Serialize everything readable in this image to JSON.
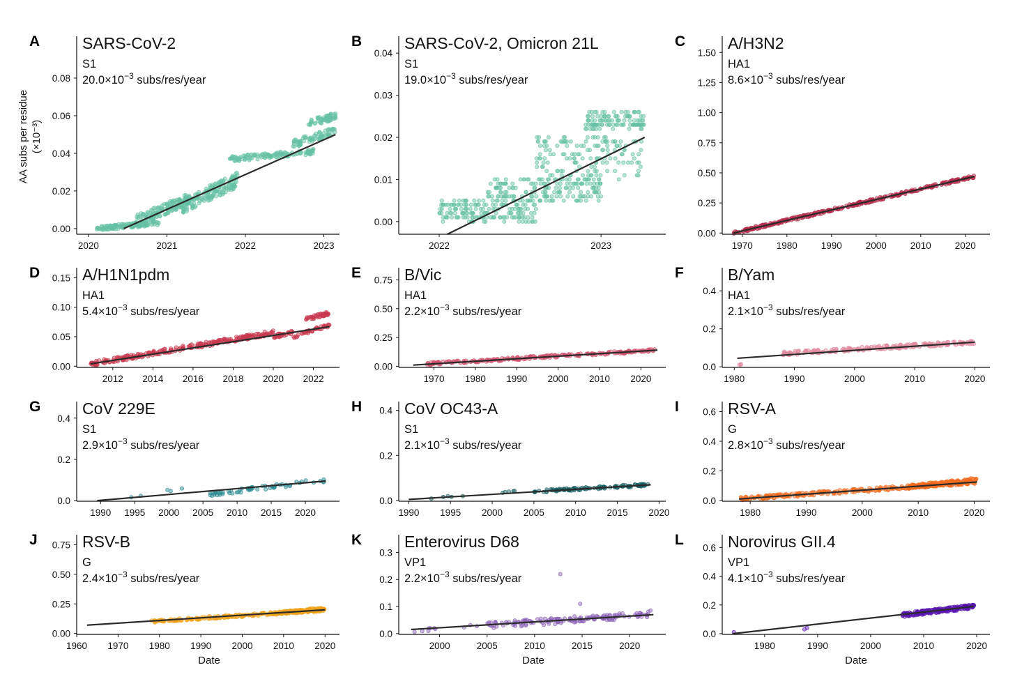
{
  "figure": {
    "ylabel_line1": "AA subs per residue",
    "ylabel_line2": "(×10⁻³)",
    "xlabel": "Date"
  },
  "chart_data": [
    {
      "id": "A",
      "type": "scatter",
      "title": "SARS-CoV-2",
      "gene": "S1",
      "rate": "20.0×10",
      "rate_exp": "−3",
      "rate_unit": " subs/res/year",
      "color": "#66c2a5",
      "xlim": [
        2019.85,
        2023.2
      ],
      "ylim": [
        -0.003,
        0.1
      ],
      "xticks": [
        2020,
        2021,
        2022,
        2023
      ],
      "xtick_labels": [
        "2020",
        "2021",
        "2022",
        "2023"
      ],
      "yticks": [
        0,
        0.02,
        0.04,
        0.06,
        0.08
      ],
      "ytick_labels": [
        "0.00",
        "0.02",
        "0.04",
        "0.06",
        "0.08"
      ],
      "fit": {
        "x0": 2020.45,
        "y0": 0.0,
        "x1": 2023.15,
        "y1": 0.05
      },
      "clusters": [
        {
          "x": [
            2020.1,
            2020.9
          ],
          "y": [
            0.0,
            0.003
          ],
          "n": 140,
          "jit": 0.0012
        },
        {
          "x": [
            2020.6,
            2021.3
          ],
          "y": [
            0.004,
            0.016
          ],
          "n": 150,
          "jit": 0.003
        },
        {
          "x": [
            2021.2,
            2021.9
          ],
          "y": [
            0.012,
            0.026
          ],
          "n": 170,
          "jit": 0.004
        },
        {
          "x": [
            2021.8,
            2022.9
          ],
          "y": [
            0.037,
            0.041
          ],
          "n": 130,
          "jit": 0.0015
        },
        {
          "x": [
            2022.6,
            2023.15
          ],
          "y": [
            0.045,
            0.052
          ],
          "n": 80,
          "jit": 0.002
        },
        {
          "x": [
            2022.8,
            2023.15
          ],
          "y": [
            0.056,
            0.06
          ],
          "n": 60,
          "jit": 0.002
        }
      ]
    },
    {
      "id": "B",
      "type": "scatter",
      "title": "SARS-CoV-2, Omicron 21L",
      "gene": "S1",
      "rate": "19.0×10",
      "rate_exp": "−3",
      "rate_unit": " subs/res/year",
      "color": "#66c2a5",
      "xlim": [
        2021.75,
        2023.4
      ],
      "ylim": [
        -0.003,
        0.043
      ],
      "xticks": [
        2022,
        2023
      ],
      "xtick_labels": [
        "2022",
        "2023"
      ],
      "yticks": [
        0,
        0.01,
        0.02,
        0.03,
        0.04
      ],
      "ytick_labels": [
        "0.00",
        "0.01",
        "0.02",
        "0.03",
        "0.04"
      ],
      "fit": {
        "x0": 2022.05,
        "y0": -0.003,
        "x1": 2023.27,
        "y1": 0.02
      },
      "clusters": [
        {
          "x": [
            2022.0,
            2022.6
          ],
          "y": [
            0.0,
            0.005
          ],
          "n": 170,
          "jit": 0.0,
          "band": 0.001
        },
        {
          "x": [
            2022.3,
            2023.0
          ],
          "y": [
            0.005,
            0.01
          ],
          "n": 170,
          "jit": 0.0,
          "band": 0.001
        },
        {
          "x": [
            2022.6,
            2023.25
          ],
          "y": [
            0.01,
            0.02
          ],
          "n": 150,
          "jit": 0.0,
          "band": 0.001
        },
        {
          "x": [
            2022.9,
            2023.27
          ],
          "y": [
            0.022,
            0.026
          ],
          "n": 110,
          "jit": 0.0,
          "band": 0.001
        }
      ]
    },
    {
      "id": "C",
      "type": "scatter",
      "title": "A/H3N2",
      "gene": "HA1",
      "rate": "8.6×10",
      "rate_exp": "−3",
      "rate_unit": " subs/res/year",
      "color": "#b5294a",
      "xlim": [
        1965.5,
        2025.5
      ],
      "ylim": [
        -0.01,
        1.6
      ],
      "xticks": [
        1970,
        1980,
        1990,
        2000,
        2010,
        2020
      ],
      "xtick_labels": [
        "1970",
        "1980",
        "1990",
        "2000",
        "2010",
        "2020"
      ],
      "yticks": [
        0,
        0.25,
        0.5,
        0.75,
        1.0,
        1.25,
        1.5
      ],
      "ytick_labels": [
        "0.00",
        "0.25",
        "0.50",
        "0.75",
        "1.00",
        "1.25",
        "1.50"
      ],
      "fit": {
        "x0": 1968,
        "y0": 0.0,
        "x1": 2022,
        "y1": 0.47
      },
      "clusters": [
        {
          "x": [
            1968,
            2022
          ],
          "y": [
            0.0,
            0.47
          ],
          "n": 320,
          "jit": 0.012
        }
      ]
    },
    {
      "id": "D",
      "type": "scatter",
      "title": "A/H1N1pdm",
      "gene": "HA1",
      "rate": "5.4×10",
      "rate_exp": "−3",
      "rate_unit": " subs/res/year",
      "color": "#c8384f",
      "xlim": [
        2010.2,
        2023.3
      ],
      "ylim": [
        -0.002,
        0.16
      ],
      "xticks": [
        2012,
        2014,
        2016,
        2018,
        2020,
        2022
      ],
      "xtick_labels": [
        "2012",
        "2014",
        "2016",
        "2018",
        "2020",
        "2022"
      ],
      "yticks": [
        0,
        0.05,
        0.1,
        0.15
      ],
      "ytick_labels": [
        "0.00",
        "0.05",
        "0.10",
        "0.15"
      ],
      "fit": {
        "x0": 2010.9,
        "y0": 0.004,
        "x1": 2022.8,
        "y1": 0.067
      },
      "clusters": [
        {
          "x": [
            2010.9,
            2020.0
          ],
          "y": [
            0.004,
            0.057
          ],
          "n": 260,
          "jit": 0.004
        },
        {
          "x": [
            2020.0,
            2021.0
          ],
          "y": [
            0.05,
            0.058
          ],
          "n": 30,
          "jit": 0.003
        },
        {
          "x": [
            2021.0,
            2022.8
          ],
          "y": [
            0.05,
            0.07
          ],
          "n": 40,
          "jit": 0.003
        },
        {
          "x": [
            2021.6,
            2022.8
          ],
          "y": [
            0.08,
            0.09
          ],
          "n": 40,
          "jit": 0.003
        }
      ]
    },
    {
      "id": "E",
      "type": "scatter",
      "title": "B/Vic",
      "gene": "HA1",
      "rate": "2.2×10",
      "rate_exp": "−3",
      "rate_unit": " subs/res/year",
      "color": "#d1506d",
      "xlim": [
        1961.5,
        2026
      ],
      "ylim": [
        -0.01,
        0.82
      ],
      "xticks": [
        1970,
        1980,
        1990,
        2000,
        2010,
        2020
      ],
      "xtick_labels": [
        "1970",
        "1980",
        "1990",
        "2000",
        "2010",
        "2020"
      ],
      "yticks": [
        0,
        0.25,
        0.5,
        0.75
      ],
      "ytick_labels": [
        "0.00",
        "0.25",
        "0.50",
        "0.75"
      ],
      "fit": {
        "x0": 1965,
        "y0": 0.01,
        "x1": 2024,
        "y1": 0.14
      },
      "clusters": [
        {
          "x": [
            1968,
            2024
          ],
          "y": [
            0.02,
            0.14
          ],
          "n": 220,
          "jit": 0.012
        }
      ]
    },
    {
      "id": "F",
      "type": "scatter",
      "title": "B/Yam",
      "gene": "HA1",
      "rate": "2.1×10",
      "rate_exp": "−3",
      "rate_unit": " subs/res/year",
      "color": "#e0889e",
      "xlim": [
        1978,
        2022.5
      ],
      "ylim": [
        -0.003,
        0.5
      ],
      "xticks": [
        1980,
        1990,
        2000,
        2010,
        2020
      ],
      "xtick_labels": [
        "1980",
        "1990",
        "2000",
        "2010",
        "2020"
      ],
      "yticks": [
        0,
        0.2,
        0.4
      ],
      "ytick_labels": [
        "0.0",
        "0.2",
        "0.4"
      ],
      "fit": {
        "x0": 1980.5,
        "y0": 0.045,
        "x1": 2020,
        "y1": 0.13
      },
      "clusters": [
        {
          "x": [
            1988,
            2020
          ],
          "y": [
            0.07,
            0.13
          ],
          "n": 200,
          "jit": 0.01
        },
        {
          "x": [
            1980.8,
            1981.5
          ],
          "y": [
            0.01,
            0.02
          ],
          "n": 3,
          "jit": 0.003
        }
      ]
    },
    {
      "id": "G",
      "type": "scatter",
      "title": "CoV 229E",
      "gene": "S1",
      "rate": "2.9×10",
      "rate_exp": "−3",
      "rate_unit": " subs/res/year",
      "color": "#2a8a91",
      "xlim": [
        1986.5,
        2025
      ],
      "ylim": [
        -0.003,
        0.46
      ],
      "xticks": [
        1990,
        1995,
        2000,
        2005,
        2010,
        2015,
        2020
      ],
      "xtick_labels": [
        "1990",
        "1995",
        "2000",
        "2005",
        "2010",
        "2015",
        "2020"
      ],
      "yticks": [
        0,
        0.2,
        0.4
      ],
      "ytick_labels": [
        "0.0",
        "0.2",
        "0.4"
      ],
      "fit": {
        "x0": 1989.5,
        "y0": 0.0,
        "x1": 2023,
        "y1": 0.095
      },
      "clusters": [
        {
          "x": [
            2006,
            2023
          ],
          "y": [
            0.03,
            0.1
          ],
          "n": 60,
          "jit": 0.01
        },
        {
          "x": [
            1993,
            2002
          ],
          "y": [
            0.01,
            0.06
          ],
          "n": 5,
          "jit": 0.008
        }
      ]
    },
    {
      "id": "H",
      "type": "scatter",
      "title": "CoV OC43-A",
      "gene": "S1",
      "rate": "2.1×10",
      "rate_exp": "−3",
      "rate_unit": " subs/res/year",
      "color": "#165e60",
      "xlim": [
        1988.8,
        2020.8
      ],
      "ylim": [
        -0.003,
        0.42
      ],
      "xticks": [
        1990,
        1995,
        2000,
        2005,
        2010,
        2015,
        2020
      ],
      "xtick_labels": [
        "1990",
        "1995",
        "2000",
        "2005",
        "2010",
        "2015",
        "2020"
      ],
      "yticks": [
        0,
        0.2,
        0.4
      ],
      "ytick_labels": [
        "0.0",
        "0.2",
        "0.4"
      ],
      "fit": {
        "x0": 1990,
        "y0": 0.005,
        "x1": 2019,
        "y1": 0.07
      },
      "clusters": [
        {
          "x": [
            2005,
            2019
          ],
          "y": [
            0.04,
            0.07
          ],
          "n": 110,
          "jit": 0.006
        },
        {
          "x": [
            1990,
            2003
          ],
          "y": [
            0.005,
            0.04
          ],
          "n": 10,
          "jit": 0.004
        }
      ]
    },
    {
      "id": "I",
      "type": "scatter",
      "title": "RSV-A",
      "gene": "G",
      "rate": "2.8×10",
      "rate_exp": "−3",
      "rate_unit": " subs/res/year",
      "color": "#f26b20",
      "xlim": [
        1975,
        2022.8
      ],
      "ylim": [
        -0.005,
        0.64
      ],
      "xticks": [
        1980,
        1990,
        2000,
        2010,
        2020
      ],
      "xtick_labels": [
        "1980",
        "1990",
        "2000",
        "2010",
        "2020"
      ],
      "yticks": [
        0,
        0.2,
        0.4,
        0.6
      ],
      "ytick_labels": [
        "0.0",
        "0.2",
        "0.4",
        "0.6"
      ],
      "fit": {
        "x0": 1978,
        "y0": 0.01,
        "x1": 2020.5,
        "y1": 0.125
      },
      "clusters": [
        {
          "x": [
            1978,
            2020.5
          ],
          "y": [
            0.01,
            0.125
          ],
          "n": 260,
          "jit": 0.012
        },
        {
          "x": [
            2008,
            2020.5
          ],
          "y": [
            0.09,
            0.14
          ],
          "n": 150,
          "jit": 0.014
        }
      ]
    },
    {
      "id": "J",
      "type": "scatter",
      "title": "RSV-B",
      "gene": "G",
      "rate": "2.4×10",
      "rate_exp": "−3",
      "rate_unit": " subs/res/year",
      "color": "#f0a21a",
      "xlim": [
        1960,
        2023.5
      ],
      "ylim": [
        -0.008,
        0.8
      ],
      "xticks": [
        1960,
        1970,
        1980,
        1990,
        2000,
        2010,
        2020
      ],
      "xtick_labels": [
        "1960",
        "1970",
        "1980",
        "1990",
        "2000",
        "2010",
        "2020"
      ],
      "yticks": [
        0,
        0.25,
        0.5,
        0.75
      ],
      "ytick_labels": [
        "0.00",
        "0.25",
        "0.50",
        "0.75"
      ],
      "fit": {
        "x0": 1962.5,
        "y0": 0.07,
        "x1": 2020,
        "y1": 0.2
      },
      "clusters": [
        {
          "x": [
            1978,
            2020
          ],
          "y": [
            0.1,
            0.2
          ],
          "n": 200,
          "jit": 0.012
        },
        {
          "x": [
            2008,
            2020
          ],
          "y": [
            0.17,
            0.21
          ],
          "n": 120,
          "jit": 0.012
        }
      ]
    },
    {
      "id": "K",
      "type": "scatter",
      "title": "Enterovirus D68",
      "gene": "VP1",
      "rate": "2.2×10",
      "rate_exp": "−3",
      "rate_unit": " subs/res/year",
      "color": "#8a62b5",
      "xlim": [
        1995.7,
        2023.8
      ],
      "ylim": [
        -0.003,
        0.35
      ],
      "xticks": [
        2000,
        2005,
        2010,
        2015,
        2020
      ],
      "xtick_labels": [
        "2000",
        "2005",
        "2010",
        "2015",
        "2020"
      ],
      "yticks": [
        0,
        0.1,
        0.2,
        0.3
      ],
      "ytick_labels": [
        "0.0",
        "0.1",
        "0.2",
        "0.3"
      ],
      "fit": {
        "x0": 1997,
        "y0": 0.015,
        "x1": 2022.5,
        "y1": 0.07
      },
      "clusters": [
        {
          "x": [
            2005,
            2022
          ],
          "y": [
            0.03,
            0.07
          ],
          "n": 150,
          "jit": 0.012
        },
        {
          "x": [
            1997,
            2004
          ],
          "y": [
            0.01,
            0.03
          ],
          "n": 10,
          "jit": 0.006
        }
      ],
      "outliers": [
        [
          2012.7,
          0.22
        ],
        [
          2014.8,
          0.11
        ],
        [
          2022.2,
          0.085
        ]
      ]
    },
    {
      "id": "L",
      "type": "scatter",
      "title": "Norovirus GII.4",
      "gene": "VP1",
      "rate": "4.1×10",
      "rate_exp": "−3",
      "rate_unit": " subs/res/year",
      "color": "#5a18b0",
      "xlim": [
        1972,
        2022.5
      ],
      "ylim": [
        -0.005,
        0.66
      ],
      "xticks": [
        1980,
        1990,
        2000,
        2010,
        2020
      ],
      "xtick_labels": [
        "1980",
        "1990",
        "2000",
        "2010",
        "2020"
      ],
      "yticks": [
        0,
        0.2,
        0.4,
        0.6
      ],
      "ytick_labels": [
        "0.0",
        "0.2",
        "0.4",
        "0.6"
      ],
      "fit": {
        "x0": 1974,
        "y0": 0.0,
        "x1": 2019.5,
        "y1": 0.19
      },
      "clusters": [
        {
          "x": [
            2006,
            2019.5
          ],
          "y": [
            0.13,
            0.19
          ],
          "n": 230,
          "jit": 0.014
        }
      ],
      "outliers": [
        [
          1974.2,
          0.01
        ],
        [
          1987.5,
          0.03
        ],
        [
          1988,
          0.04
        ]
      ]
    }
  ]
}
